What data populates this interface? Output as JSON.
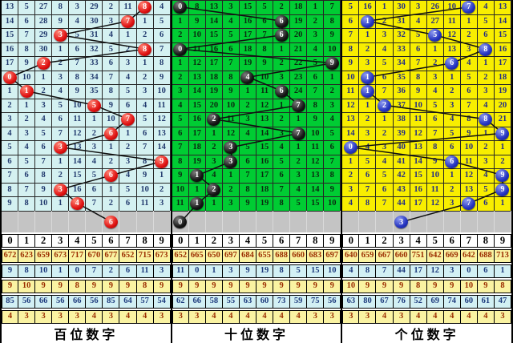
{
  "chart_data": {
    "type": "table",
    "description_visible_text_only": true,
    "colors": {
      "gray_row_bg": "#c4c4c4",
      "stat_yellow_bg": "#faf3a2",
      "stat_cyan_bg": "#d2f0f4",
      "stat_yellow_text": "#9b2d00",
      "stat_cyan_text": "#1d3a7d",
      "grid_line": "#262626",
      "trend_line": "#101010"
    },
    "panels": [
      {
        "name": "hundreds",
        "footer_label": "百位数字",
        "digit_header": [
          "0",
          "1",
          "2",
          "3",
          "4",
          "5",
          "6",
          "7",
          "8",
          "9"
        ],
        "colors": {
          "grid_bg": "#d4f1f1",
          "cell_text": "#223a6e",
          "ball": "#e01212",
          "ball_highlight": "#ff8878",
          "ball_shadow": "#8d0000"
        },
        "rows": [
          {
            "cells": [
              "13",
              "5",
              "27",
              "8",
              "3",
              "29",
              "2",
              "11",
              "8",
              "4"
            ],
            "ball_col": 8
          },
          {
            "cells": [
              "14",
              "6",
              "28",
              "9",
              "4",
              "30",
              "3",
              "7",
              "1",
              "5"
            ],
            "ball_col": 7
          },
          {
            "cells": [
              "15",
              "7",
              "29",
              "3",
              "5",
              "31",
              "4",
              "1",
              "2",
              "6"
            ],
            "ball_col": 3
          },
          {
            "cells": [
              "16",
              "8",
              "30",
              "1",
              "6",
              "32",
              "5",
              "2",
              "8",
              "7"
            ],
            "ball_col": 8
          },
          {
            "cells": [
              "17",
              "9",
              "2",
              "2",
              "7",
              "33",
              "6",
              "3",
              "1",
              "8"
            ],
            "ball_col": 2
          },
          {
            "cells": [
              "0",
              "10",
              "1",
              "3",
              "8",
              "34",
              "7",
              "4",
              "2",
              "9"
            ],
            "ball_col": 0
          },
          {
            "cells": [
              "1",
              "1",
              "2",
              "4",
              "9",
              "35",
              "8",
              "5",
              "3",
              "10"
            ],
            "ball_col": 1
          },
          {
            "cells": [
              "2",
              "1",
              "3",
              "5",
              "10",
              "5",
              "9",
              "6",
              "4",
              "11"
            ],
            "ball_col": 5
          },
          {
            "cells": [
              "3",
              "2",
              "4",
              "6",
              "11",
              "1",
              "10",
              "7",
              "5",
              "12"
            ],
            "ball_col": 7
          },
          {
            "cells": [
              "4",
              "3",
              "5",
              "7",
              "12",
              "2",
              "6",
              "1",
              "6",
              "13"
            ],
            "ball_col": 6
          },
          {
            "cells": [
              "5",
              "4",
              "6",
              "3",
              "13",
              "3",
              "1",
              "2",
              "7",
              "14"
            ],
            "ball_col": 3
          },
          {
            "cells": [
              "6",
              "5",
              "7",
              "1",
              "14",
              "4",
              "2",
              "3",
              "8",
              "9"
            ],
            "ball_col": 9
          },
          {
            "cells": [
              "7",
              "6",
              "8",
              "2",
              "15",
              "5",
              "6",
              "4",
              "9",
              "1"
            ],
            "ball_col": 6
          },
          {
            "cells": [
              "8",
              "7",
              "9",
              "3",
              "16",
              "6",
              "1",
              "5",
              "10",
              "2"
            ],
            "ball_col": 3
          },
          {
            "cells": [
              "9",
              "8",
              "10",
              "1",
              "4",
              "7",
              "2",
              "6",
              "11",
              "3"
            ],
            "ball_col": 4
          }
        ],
        "current_row_ball_col": 6,
        "stats_rows": [
          [
            "672",
            "623",
            "659",
            "673",
            "717",
            "670",
            "677",
            "652",
            "715",
            "673"
          ],
          [
            "9",
            "8",
            "10",
            "1",
            "0",
            "7",
            "2",
            "6",
            "11",
            "3"
          ],
          [
            "9",
            "10",
            "9",
            "9",
            "8",
            "9",
            "9",
            "9",
            "8",
            "9"
          ],
          [
            "85",
            "56",
            "66",
            "56",
            "66",
            "56",
            "85",
            "64",
            "57",
            "54"
          ],
          [
            "4",
            "3",
            "3",
            "3",
            "3",
            "4",
            "3",
            "4",
            "4",
            "3"
          ]
        ]
      },
      {
        "name": "tens",
        "footer_label": "十位数字",
        "digit_header": [
          "0",
          "1",
          "2",
          "3",
          "4",
          "5",
          "6",
          "7",
          "8",
          "9"
        ],
        "colors": {
          "grid_bg": "#00cc33",
          "cell_text": "#0a2a10",
          "ball": "#151515",
          "ball_highlight": "#7d7d7d",
          "ball_shadow": "#000000"
        },
        "rows": [
          {
            "cells": [
              "0",
              "8",
              "13",
              "3",
              "15",
              "5",
              "2",
              "18",
              "1",
              "7"
            ],
            "ball_col": 0
          },
          {
            "cells": [
              "1",
              "9",
              "14",
              "4",
              "16",
              "6",
              "6",
              "19",
              "2",
              "8"
            ],
            "ball_col": 6
          },
          {
            "cells": [
              "2",
              "10",
              "15",
              "5",
              "17",
              "7",
              "6",
              "20",
              "3",
              "9"
            ],
            "ball_col": 6
          },
          {
            "cells": [
              "0",
              "11",
              "16",
              "6",
              "18",
              "8",
              "1",
              "21",
              "4",
              "10"
            ],
            "ball_col": 0
          },
          {
            "cells": [
              "1",
              "12",
              "17",
              "7",
              "19",
              "9",
              "2",
              "22",
              "5",
              "9"
            ],
            "ball_col": 9
          },
          {
            "cells": [
              "2",
              "13",
              "18",
              "8",
              "4",
              "10",
              "3",
              "23",
              "6",
              "1"
            ],
            "ball_col": 4
          },
          {
            "cells": [
              "3",
              "14",
              "19",
              "9",
              "1",
              "11",
              "6",
              "24",
              "7",
              "2"
            ],
            "ball_col": 6
          },
          {
            "cells": [
              "4",
              "15",
              "20",
              "10",
              "2",
              "12",
              "1",
              "7",
              "8",
              "3"
            ],
            "ball_col": 7
          },
          {
            "cells": [
              "5",
              "16",
              "2",
              "11",
              "3",
              "13",
              "2",
              "1",
              "9",
              "4"
            ],
            "ball_col": 2
          },
          {
            "cells": [
              "6",
              "17",
              "1",
              "12",
              "4",
              "14",
              "3",
              "7",
              "10",
              "5"
            ],
            "ball_col": 7
          },
          {
            "cells": [
              "7",
              "18",
              "2",
              "3",
              "5",
              "15",
              "4",
              "1",
              "11",
              "6"
            ],
            "ball_col": 3
          },
          {
            "cells": [
              "8",
              "19",
              "3",
              "3",
              "6",
              "16",
              "5",
              "2",
              "12",
              "7"
            ],
            "ball_col": 3
          },
          {
            "cells": [
              "9",
              "1",
              "4",
              "1",
              "7",
              "17",
              "6",
              "3",
              "13",
              "8"
            ],
            "ball_col": 1
          },
          {
            "cells": [
              "10",
              "1",
              "2",
              "2",
              "8",
              "18",
              "7",
              "4",
              "14",
              "9"
            ],
            "ball_col": 2
          },
          {
            "cells": [
              "11",
              "1",
              "1",
              "3",
              "9",
              "19",
              "8",
              "5",
              "15",
              "10"
            ],
            "ball_col": 1
          }
        ],
        "current_row_ball_col": 0,
        "stats_rows": [
          [
            "652",
            "665",
            "650",
            "697",
            "684",
            "655",
            "688",
            "660",
            "683",
            "697"
          ],
          [
            "11",
            "0",
            "1",
            "3",
            "9",
            "19",
            "8",
            "5",
            "15",
            "10"
          ],
          [
            "9",
            "9",
            "9",
            "9",
            "9",
            "9",
            "9",
            "9",
            "9",
            "9"
          ],
          [
            "62",
            "66",
            "58",
            "55",
            "63",
            "60",
            "73",
            "59",
            "75",
            "56"
          ],
          [
            "3",
            "3",
            "4",
            "4",
            "4",
            "4",
            "4",
            "4",
            "3",
            "3"
          ]
        ]
      },
      {
        "name": "units",
        "footer_label": "个位数字",
        "digit_header": [
          "0",
          "1",
          "2",
          "3",
          "4",
          "5",
          "6",
          "7",
          "8",
          "9"
        ],
        "colors": {
          "grid_bg": "#f8ee00",
          "cell_text": "#232d85",
          "ball": "#2433c0",
          "ball_highlight": "#8d9af0",
          "ball_shadow": "#151f78"
        },
        "rows": [
          {
            "cells": [
              "5",
              "16",
              "1",
              "30",
              "3",
              "26",
              "10",
              "7",
              "4",
              "13"
            ],
            "ball_col": 7
          },
          {
            "cells": [
              "6",
              "1",
              "2",
              "31",
              "4",
              "27",
              "11",
              "1",
              "5",
              "14"
            ],
            "ball_col": 1
          },
          {
            "cells": [
              "7",
              "1",
              "3",
              "32",
              "5",
              "5",
              "12",
              "2",
              "6",
              "15"
            ],
            "ball_col": 5
          },
          {
            "cells": [
              "8",
              "2",
              "4",
              "33",
              "6",
              "1",
              "13",
              "3",
              "8",
              "16"
            ],
            "ball_col": 8
          },
          {
            "cells": [
              "9",
              "3",
              "5",
              "34",
              "7",
              "2",
              "6",
              "4",
              "1",
              "17"
            ],
            "ball_col": 6
          },
          {
            "cells": [
              "10",
              "1",
              "6",
              "35",
              "8",
              "3",
              "1",
              "5",
              "2",
              "18"
            ],
            "ball_col": 1
          },
          {
            "cells": [
              "11",
              "1",
              "7",
              "36",
              "9",
              "4",
              "2",
              "6",
              "3",
              "19"
            ],
            "ball_col": 1
          },
          {
            "cells": [
              "12",
              "1",
              "2",
              "37",
              "10",
              "5",
              "3",
              "7",
              "4",
              "20"
            ],
            "ball_col": 2
          },
          {
            "cells": [
              "13",
              "2",
              "1",
              "38",
              "11",
              "6",
              "4",
              "8",
              "8",
              "21"
            ],
            "ball_col": 8
          },
          {
            "cells": [
              "14",
              "3",
              "2",
              "39",
              "12",
              "7",
              "5",
              "9",
              "1",
              "9"
            ],
            "ball_col": 9
          },
          {
            "cells": [
              "0",
              "4",
              "3",
              "40",
              "13",
              "8",
              "6",
              "10",
              "2",
              "1"
            ],
            "ball_col": 0
          },
          {
            "cells": [
              "1",
              "5",
              "4",
              "41",
              "14",
              "9",
              "6",
              "11",
              "3",
              "2"
            ],
            "ball_col": 6
          },
          {
            "cells": [
              "2",
              "6",
              "5",
              "42",
              "15",
              "10",
              "1",
              "12",
              "4",
              "9"
            ],
            "ball_col": 9
          },
          {
            "cells": [
              "3",
              "7",
              "6",
              "43",
              "16",
              "11",
              "2",
              "13",
              "5",
              "9"
            ],
            "ball_col": 9
          },
          {
            "cells": [
              "4",
              "8",
              "7",
              "44",
              "17",
              "12",
              "3",
              "7",
              "6",
              "1"
            ],
            "ball_col": 7
          }
        ],
        "current_row_ball_col": 3,
        "stats_rows": [
          [
            "640",
            "659",
            "667",
            "660",
            "751",
            "642",
            "669",
            "642",
            "688",
            "713"
          ],
          [
            "4",
            "8",
            "7",
            "44",
            "17",
            "12",
            "3",
            "0",
            "6",
            "1"
          ],
          [
            "10",
            "9",
            "9",
            "9",
            "8",
            "9",
            "9",
            "10",
            "9",
            "8"
          ],
          [
            "63",
            "80",
            "67",
            "76",
            "52",
            "69",
            "74",
            "60",
            "61",
            "47"
          ],
          [
            "3",
            "3",
            "4",
            "3",
            "4",
            "4",
            "4",
            "4",
            "4",
            "3"
          ]
        ]
      }
    ]
  }
}
